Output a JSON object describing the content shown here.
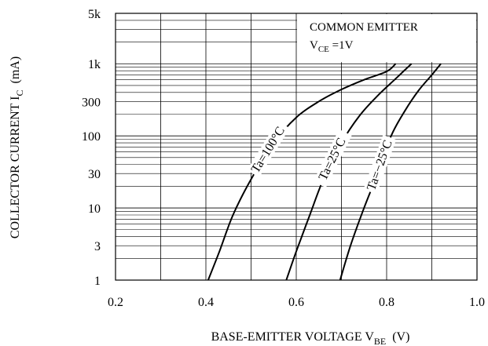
{
  "chart_data": {
    "type": "line",
    "xlabel": {
      "main": "BASE-EMITTER VOLTAGE V",
      "sub": "BE",
      "unit": "(V)"
    },
    "ylabel": {
      "main": "COLLECTOR CURRENT I",
      "sub": "C",
      "unit": "(mA)"
    },
    "xlim": [
      0.2,
      1.0
    ],
    "ylim": [
      1,
      5000
    ],
    "yscale": "log",
    "grid": true,
    "x_ticks": [
      "0.2",
      "0.4",
      "0.6",
      "0.8",
      "1.0"
    ],
    "x_tick_values": [
      0.2,
      0.4,
      0.6,
      0.8,
      1.0
    ],
    "y_ticks": [
      "1",
      "3",
      "10",
      "30",
      "100",
      "300",
      "1k",
      "5k"
    ],
    "y_tick_values": [
      1,
      3,
      10,
      30,
      100,
      300,
      1000,
      5000
    ],
    "annotation": {
      "line1": "COMMON EMITTER",
      "line2_main": "V",
      "line2_sub": "CE",
      "line2_rest": " =1V"
    },
    "series": [
      {
        "name": "Ta=100°C",
        "label": "Ta=100°C",
        "x": [
          0.405,
          0.43,
          0.46,
          0.5,
          0.55,
          0.6,
          0.65,
          0.7,
          0.75,
          0.8,
          0.82
        ],
        "y": [
          1,
          2.5,
          8,
          25,
          80,
          180,
          300,
          440,
          600,
          780,
          1000
        ]
      },
      {
        "name": "Ta=25°C",
        "label": "Ta=25°C",
        "x": [
          0.578,
          0.6,
          0.63,
          0.66,
          0.7,
          0.74,
          0.78,
          0.82,
          0.855
        ],
        "y": [
          1,
          2.5,
          8,
          25,
          80,
          190,
          360,
          620,
          1000
        ]
      },
      {
        "name": "Ta=-25°C",
        "label": "Ta=−25°C",
        "x": [
          0.697,
          0.72,
          0.75,
          0.78,
          0.81,
          0.84,
          0.87,
          0.9,
          0.92
        ],
        "y": [
          1,
          3,
          10,
          30,
          100,
          220,
          420,
          700,
          1000
        ]
      }
    ]
  }
}
